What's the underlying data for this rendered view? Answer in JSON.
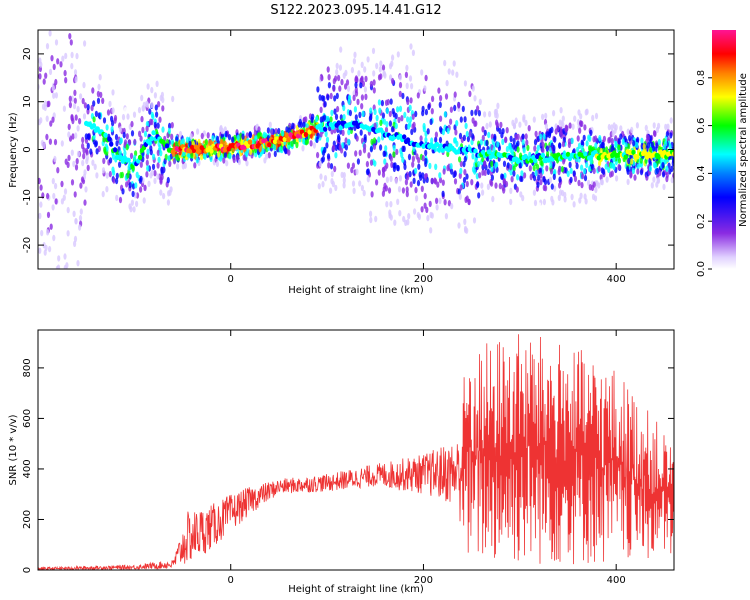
{
  "figure_title": "S122.2023.095.14.41.G12",
  "chart_data": [
    {
      "type": "heatmap",
      "title": "",
      "xlabel": "Height of straight line (km)",
      "ylabel": "Frequency (Hz)",
      "xlim": [
        -200,
        460
      ],
      "ylim": [
        -25,
        25
      ],
      "x_ticks": [
        0,
        200,
        400
      ],
      "y_ticks": [
        -20,
        -10,
        0,
        10,
        20
      ],
      "colorbar": {
        "label": "Normalized spectral amplitude",
        "range": [
          0.0,
          1.0
        ],
        "ticks": [
          "0.0",
          "0.2",
          "0.4",
          "0.6",
          "0.8"
        ],
        "colormap": [
          "#ffffff",
          "#d8c8ff",
          "#8a2be2",
          "#0000ff",
          "#00ffff",
          "#00ff00",
          "#ffff00",
          "#ff8000",
          "#ff0000",
          "#ff1493"
        ]
      },
      "ridge_frequency": [
        {
          "x": -145,
          "y": 5
        },
        {
          "x": -130,
          "y": 3
        },
        {
          "x": -115,
          "y": -2
        },
        {
          "x": -100,
          "y": -3
        },
        {
          "x": -90,
          "y": 0
        },
        {
          "x": -80,
          "y": 3
        },
        {
          "x": -65,
          "y": 0
        },
        {
          "x": -30,
          "y": 0
        },
        {
          "x": 0,
          "y": 0.5
        },
        {
          "x": 40,
          "y": 1.5
        },
        {
          "x": 70,
          "y": 3
        },
        {
          "x": 100,
          "y": 5
        },
        {
          "x": 130,
          "y": 5
        },
        {
          "x": 200,
          "y": 1
        },
        {
          "x": 300,
          "y": -2
        },
        {
          "x": 400,
          "y": -1
        },
        {
          "x": 460,
          "y": -1
        }
      ]
    },
    {
      "type": "line",
      "title": "",
      "xlabel": "Height of straight line (km)",
      "ylabel": "SNR (10 * v/v)",
      "xlim": [
        -200,
        460
      ],
      "ylim": [
        0,
        950
      ],
      "x_ticks": [
        0,
        200,
        400
      ],
      "y_ticks": [
        0,
        200,
        400,
        600,
        800
      ],
      "series_color": "#ee3333",
      "envelope": [
        {
          "x": -200,
          "lo": 0,
          "hi": 10
        },
        {
          "x": -100,
          "lo": 2,
          "hi": 20
        },
        {
          "x": -60,
          "lo": 5,
          "hi": 40
        },
        {
          "x": -45,
          "lo": 20,
          "hi": 230
        },
        {
          "x": -20,
          "lo": 80,
          "hi": 260
        },
        {
          "x": 0,
          "lo": 150,
          "hi": 300
        },
        {
          "x": 20,
          "lo": 220,
          "hi": 330
        },
        {
          "x": 50,
          "lo": 300,
          "hi": 360
        },
        {
          "x": 100,
          "lo": 310,
          "hi": 380
        },
        {
          "x": 150,
          "lo": 330,
          "hi": 420
        },
        {
          "x": 200,
          "lo": 300,
          "hi": 460
        },
        {
          "x": 235,
          "lo": 250,
          "hi": 520
        },
        {
          "x": 245,
          "lo": 30,
          "hi": 880
        },
        {
          "x": 300,
          "lo": 15,
          "hi": 950
        },
        {
          "x": 350,
          "lo": 15,
          "hi": 900
        },
        {
          "x": 400,
          "lo": 15,
          "hi": 800
        },
        {
          "x": 460,
          "lo": 50,
          "hi": 500
        }
      ]
    }
  ]
}
